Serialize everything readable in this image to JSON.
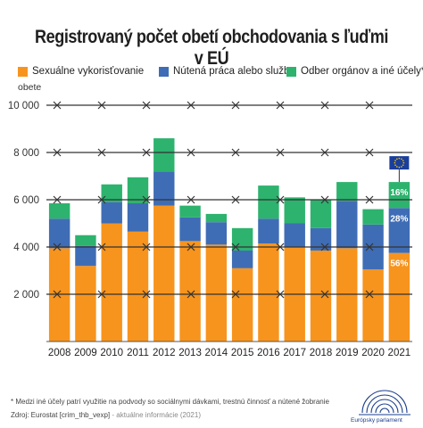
{
  "title": "Registrovaný počet obetí obchodovania s ľuďmi v EÚ",
  "legend": {
    "items": [
      {
        "label": "Sexuálne vykorisťovanie",
        "color": "#F7941D"
      },
      {
        "label": "Nútená práca alebo služby",
        "color": "#3F6DB5"
      },
      {
        "label": "Odber orgánov a iné účely*",
        "color": "#2DB36E"
      }
    ]
  },
  "footer": {
    "note": "* Medzi iné účely patrí využitie na podvody so sociálnymi dávkami, trestnú činnosť a nútené žobranie",
    "source_prefix": "Zdroj: Eurostat [crim_thb_vexp]",
    "source_suffix": "- aktuálne informácie (2021)",
    "logo_text": "Európsky parlament"
  },
  "chart_data": {
    "type": "bar",
    "stacked": true,
    "title": "Registrovaný počet obetí obchodovania s ľuďmi v EÚ",
    "ylabel": "obete",
    "xlabel": "",
    "ylim": [
      0,
      10000
    ],
    "yticks": [
      2000,
      4000,
      6000,
      8000,
      10000
    ],
    "ytick_labels": [
      "2 000",
      "4 000",
      "6 000",
      "8 000",
      "10 000"
    ],
    "grid": "horizontal barbed-wire lines",
    "categories": [
      "2008",
      "2009",
      "2010",
      "2011",
      "2012",
      "2013",
      "2014",
      "2015",
      "2016",
      "2017",
      "2018",
      "2019",
      "2020",
      "2021"
    ],
    "series": [
      {
        "name": "Sexuálne vykorisťovanie",
        "color": "#F7941D",
        "values": [
          3950,
          3200,
          5000,
          4650,
          5750,
          4250,
          4100,
          3100,
          4150,
          4000,
          3850,
          3950,
          3050,
          3750
        ]
      },
      {
        "name": "Nútená práca alebo služby",
        "color": "#3F6DB5",
        "values": [
          1250,
          850,
          900,
          1200,
          1450,
          1000,
          950,
          750,
          1050,
          1000,
          950,
          2000,
          1900,
          1900
        ]
      },
      {
        "name": "Odber orgánov a iné účely*",
        "color": "#2DB36E",
        "values": [
          650,
          450,
          750,
          1100,
          1400,
          500,
          350,
          950,
          1400,
          1100,
          1200,
          800,
          650,
          1100
        ]
      }
    ],
    "annotations": [
      {
        "category": "2021",
        "series": "Sexuálne vykorisťovanie",
        "text": "56%"
      },
      {
        "category": "2021",
        "series": "Nútená práca alebo služby",
        "text": "28%"
      },
      {
        "category": "2021",
        "series": "Odber orgánov a iné účely*",
        "text": "16%"
      }
    ],
    "flag_icon": "eu-flag-icon"
  }
}
